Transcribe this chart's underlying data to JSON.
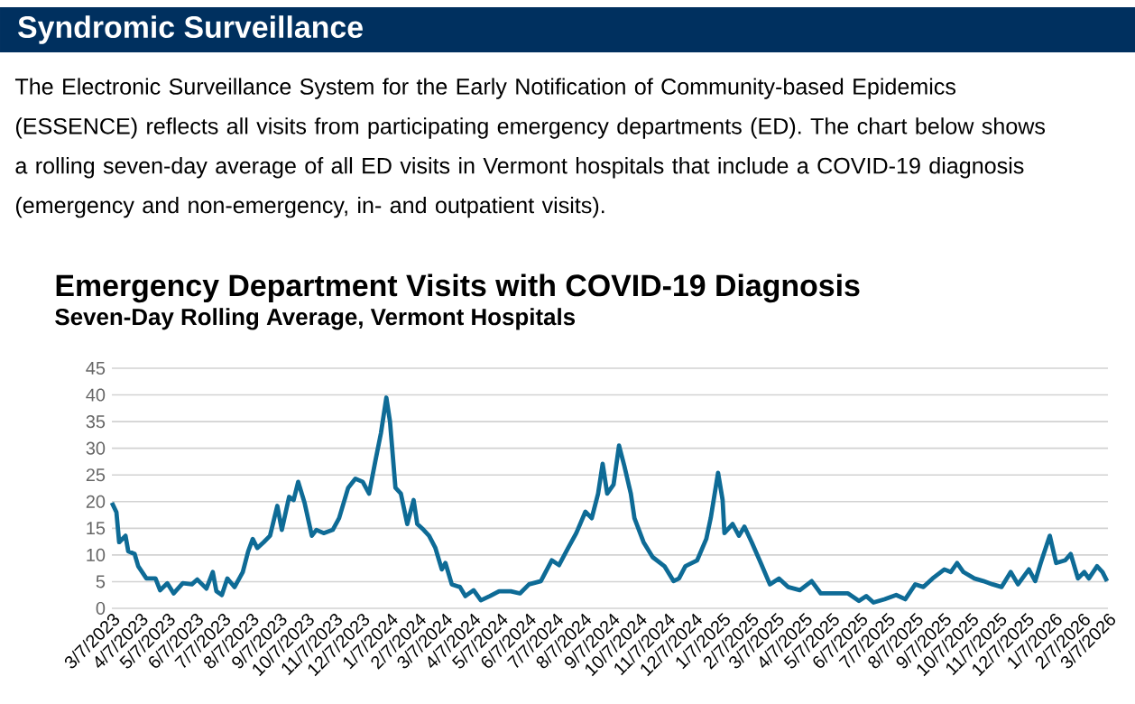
{
  "chart_data": {
    "type": "line",
    "title": "Emergency Department Visits with COVID-19 Diagnosis",
    "subtitle": "Seven-Day Rolling Average, Vermont Hospitals",
    "annotations": [
      "Syndromic Surveillance",
      "The Electronic Surveillance System for the Early Notification of Community-based Epidemics (ESSENCE) reflects all visits from participating emergency departments (ED). The chart below shows a rolling seven-day average of all ED visits in Vermont hospitals that include a COVID-19 diagnosis (emergency and non-emergency, in- and outpatient visits)."
    ],
    "x": [
      "2023-03-07",
      "2023-03-12",
      "2023-03-15",
      "2023-03-22",
      "2023-03-25",
      "2023-04-01",
      "2023-04-05",
      "2023-04-14",
      "2023-04-24",
      "2023-04-29",
      "2023-05-07",
      "2023-05-14",
      "2023-05-24",
      "2023-06-03",
      "2023-06-09",
      "2023-06-19",
      "2023-06-26",
      "2023-06-30",
      "2023-07-06",
      "2023-07-12",
      "2023-07-20",
      "2023-07-29",
      "2023-08-04",
      "2023-08-09",
      "2023-08-14",
      "2023-08-21",
      "2023-08-28",
      "2023-09-05",
      "2023-09-10",
      "2023-09-18",
      "2023-09-23",
      "2023-09-28",
      "2023-10-05",
      "2023-10-13",
      "2023-10-18",
      "2023-10-26",
      "2023-11-05",
      "2023-11-12",
      "2023-11-22",
      "2023-11-30",
      "2023-12-08",
      "2023-12-15",
      "2023-12-22",
      "2023-12-28",
      "2024-01-03",
      "2024-01-07",
      "2024-01-13",
      "2024-01-19",
      "2024-01-26",
      "2024-02-02",
      "2024-02-06",
      "2024-02-13",
      "2024-02-19",
      "2024-02-26",
      "2024-03-04",
      "2024-03-08",
      "2024-03-15",
      "2024-03-24",
      "2024-03-30",
      "2024-04-08",
      "2024-04-16",
      "2024-04-26",
      "2024-05-06",
      "2024-05-19",
      "2024-05-29",
      "2024-06-08",
      "2024-06-21",
      "2024-07-03",
      "2024-07-11",
      "2024-07-21",
      "2024-07-30",
      "2024-08-09",
      "2024-08-16",
      "2024-08-23",
      "2024-08-28",
      "2024-09-02",
      "2024-09-09",
      "2024-09-15",
      "2024-09-21",
      "2024-09-28",
      "2024-10-02",
      "2024-10-12",
      "2024-10-22",
      "2024-11-04",
      "2024-11-14",
      "2024-11-20",
      "2024-11-27",
      "2024-12-10",
      "2024-12-20",
      "2024-12-25",
      "2025-01-02",
      "2025-01-07",
      "2025-01-09",
      "2025-01-18",
      "2025-01-25",
      "2025-01-31",
      "2025-02-08",
      "2025-02-18",
      "2025-02-28",
      "2025-03-10",
      "2025-03-20",
      "2025-04-02",
      "2025-04-15",
      "2025-04-25",
      "2025-05-12",
      "2025-05-25",
      "2025-06-06",
      "2025-06-14",
      "2025-06-22",
      "2025-07-04",
      "2025-07-17",
      "2025-07-27",
      "2025-08-07",
      "2025-08-16",
      "2025-08-26",
      "2025-09-08",
      "2025-09-15",
      "2025-09-22",
      "2025-09-29",
      "2025-10-11",
      "2025-10-21",
      "2025-10-31",
      "2025-11-10",
      "2025-11-20",
      "2025-11-28",
      "2025-12-10",
      "2025-12-17",
      "2025-12-23",
      "2026-01-02",
      "2026-01-09",
      "2026-01-19",
      "2026-01-25",
      "2026-02-02",
      "2026-02-09",
      "2026-02-14",
      "2026-02-23",
      "2026-03-01",
      "2026-03-06"
    ],
    "series": [
      {
        "color": "#0e6b96",
        "values": [
          19.8,
          18,
          12.4,
          13.6,
          10.7,
          10.2,
          7.9,
          5.6,
          5.6,
          3.4,
          4.7,
          2.8,
          4.7,
          4.5,
          5.4,
          3.7,
          6.8,
          3.2,
          2.5,
          5.6,
          4.0,
          6.8,
          10.7,
          13,
          11.3,
          12.4,
          13.6,
          19.2,
          14.7,
          20.9,
          20.3,
          23.7,
          19.8,
          13.6,
          14.7,
          14.1,
          14.7,
          16.9,
          22.6,
          24.3,
          23.7,
          21.5,
          27.7,
          32.8,
          39.5,
          35,
          22.6,
          21.5,
          15.8,
          20.3,
          15.8,
          14.7,
          13.6,
          11.3,
          7.3,
          8.5,
          4.5,
          4.0,
          2.3,
          3.4,
          1.5,
          2.3,
          3.2,
          3.2,
          2.8,
          4.5,
          5.1,
          9,
          8.1,
          11.3,
          14.1,
          18.1,
          16.9,
          21.5,
          27.1,
          21.5,
          23.2,
          30.5,
          26.6,
          21.5,
          16.9,
          12.4,
          9.6,
          7.9,
          5.1,
          5.6,
          7.9,
          9,
          13,
          17,
          25.4,
          20.3,
          14.1,
          15.8,
          13.6,
          15.3,
          12.4,
          8.5,
          4.5,
          5.6,
          4.0,
          3.4,
          5.1,
          2.8,
          2.8,
          2.8,
          1.4,
          2.3,
          1.1,
          1.7,
          2.5,
          1.7,
          4.5,
          4.0,
          5.6,
          7.3,
          6.8,
          8.5,
          6.8,
          5.6,
          5.1,
          4.5,
          4.0,
          6.8,
          4.5,
          7.3,
          5.1,
          8.5,
          13.6,
          8.5,
          9,
          10.2,
          5.6,
          6.8,
          5.6,
          7.9,
          6.8,
          5.1
        ]
      }
    ],
    "xlim": [
      "2023-03-07",
      "2026-03-07"
    ],
    "xticks": [
      {
        "value": "2023-03-07",
        "label": "3/7/2023"
      },
      {
        "value": "2023-04-07",
        "label": "4/7/2023"
      },
      {
        "value": "2023-05-07",
        "label": "5/7/2023"
      },
      {
        "value": "2023-06-07",
        "label": "6/7/2023"
      },
      {
        "value": "2023-07-07",
        "label": "7/7/2023"
      },
      {
        "value": "2023-08-07",
        "label": "8/7/2023"
      },
      {
        "value": "2023-09-07",
        "label": "9/7/2023"
      },
      {
        "value": "2023-10-07",
        "label": "10/7/2023"
      },
      {
        "value": "2023-11-07",
        "label": "11/7/2023"
      },
      {
        "value": "2023-12-07",
        "label": "12/7/2023"
      },
      {
        "value": "2024-01-07",
        "label": "1/7/2024"
      },
      {
        "value": "2024-02-07",
        "label": "2/7/2024"
      },
      {
        "value": "2024-03-07",
        "label": "3/7/2024"
      },
      {
        "value": "2024-04-07",
        "label": "4/7/2024"
      },
      {
        "value": "2024-05-07",
        "label": "5/7/2024"
      },
      {
        "value": "2024-06-07",
        "label": "6/7/2024"
      },
      {
        "value": "2024-07-07",
        "label": "7/7/2024"
      },
      {
        "value": "2024-08-07",
        "label": "8/7/2024"
      },
      {
        "value": "2024-09-07",
        "label": "9/7/2024"
      },
      {
        "value": "2024-10-07",
        "label": "10/7/2024"
      },
      {
        "value": "2024-11-07",
        "label": "11/7/2024"
      },
      {
        "value": "2024-12-07",
        "label": "12/7/2024"
      },
      {
        "value": "2025-01-07",
        "label": "1/7/2025"
      },
      {
        "value": "2025-02-07",
        "label": "2/7/2025"
      },
      {
        "value": "2025-03-07",
        "label": "3/7/2025"
      },
      {
        "value": "2025-04-07",
        "label": "4/7/2025"
      },
      {
        "value": "2025-05-07",
        "label": "5/7/2025"
      },
      {
        "value": "2025-06-07",
        "label": "6/7/2025"
      },
      {
        "value": "2025-07-07",
        "label": "7/7/2025"
      },
      {
        "value": "2025-08-07",
        "label": "8/7/2025"
      },
      {
        "value": "2025-09-07",
        "label": "9/7/2025"
      },
      {
        "value": "2025-10-07",
        "label": "10/7/2025"
      },
      {
        "value": "2025-11-07",
        "label": "11/7/2025"
      },
      {
        "value": "2025-12-07",
        "label": "12/7/2025"
      },
      {
        "value": "2026-01-07",
        "label": "1/7/2026"
      },
      {
        "value": "2026-02-07",
        "label": "2/7/2026"
      },
      {
        "value": "2026-03-07",
        "label": "3/7/2026"
      }
    ],
    "ylim": [
      0,
      45
    ],
    "yticks": [
      0,
      5,
      10,
      15,
      20,
      25,
      30,
      35,
      40,
      45
    ],
    "grid": "y",
    "line_style": "solid"
  }
}
